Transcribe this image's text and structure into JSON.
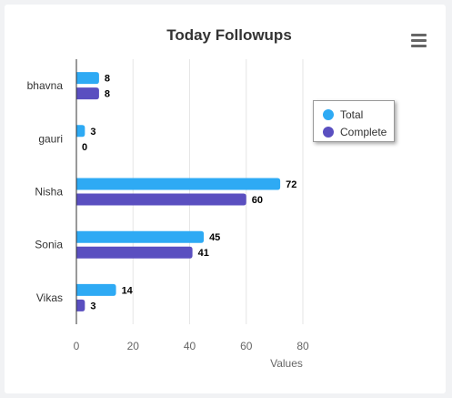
{
  "chart_data": {
    "type": "bar",
    "orientation": "horizontal",
    "title": "Today Followups",
    "categories": [
      "bhavna",
      "gauri",
      "Nisha",
      "Sonia",
      "Vikas"
    ],
    "series": [
      {
        "name": "Total",
        "values": [
          8,
          3,
          72,
          45,
          14
        ],
        "color": "#2eaaf4"
      },
      {
        "name": "Complete",
        "values": [
          8,
          0,
          60,
          41,
          3
        ],
        "color": "#5a4fc0"
      }
    ],
    "xlabel": "Values",
    "xlim": [
      0,
      80
    ],
    "xticks": [
      0,
      20,
      40,
      60,
      80
    ],
    "grid": true,
    "data_labels": true,
    "legend_position": "right"
  },
  "menu_icon": "hamburger-menu-icon"
}
